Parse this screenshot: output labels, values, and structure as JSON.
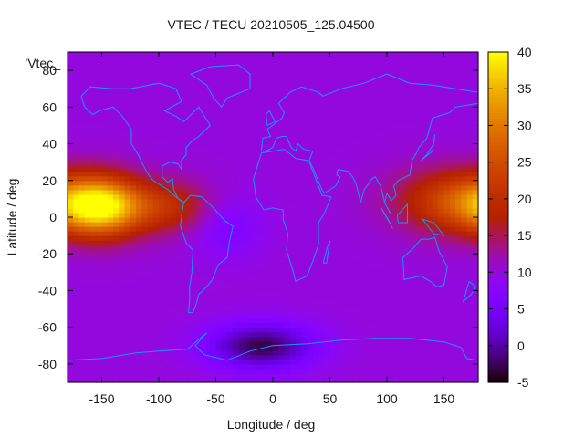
{
  "chart_data": {
    "type": "heatmap",
    "title": "VTEC / TECU 20210505_125.04500",
    "key_label": "'Vtec_",
    "xlabel": "Longitude / deg",
    "ylabel": "Latitude / deg",
    "xlim": [
      -180,
      180
    ],
    "ylim": [
      -90,
      90
    ],
    "x_ticks": [
      -150,
      -100,
      -50,
      0,
      50,
      100,
      150
    ],
    "y_ticks": [
      -80,
      -60,
      -40,
      -20,
      0,
      20,
      40,
      60,
      80
    ],
    "x_tick_labels": [
      "-150",
      "-100",
      "-50",
      "0",
      "50",
      "100",
      "150"
    ],
    "y_tick_labels": [
      "-80",
      "-60",
      "-40",
      "-20",
      "0",
      "20",
      "40",
      "60",
      "80"
    ],
    "colorbar": {
      "min": -5,
      "max": 40,
      "ticks": [
        -5,
        0,
        5,
        10,
        15,
        20,
        25,
        30,
        35,
        40
      ],
      "tick_labels": [
        "-5",
        "0",
        "5",
        "10",
        "15",
        "20",
        "25",
        "30",
        "35",
        "40"
      ]
    },
    "grid": false,
    "coastline_color": "#1e90ff",
    "features": [
      {
        "type": "background",
        "value": 10
      },
      {
        "type": "enhancement",
        "lon": -150,
        "lat": 6,
        "lon_width": 35,
        "lat_width": 16,
        "value": 25
      },
      {
        "type": "enhancement",
        "lon": -95,
        "lat": 6,
        "lon_width": 40,
        "lat_width": 14,
        "value": 10
      },
      {
        "type": "enhancement",
        "lon": 175,
        "lat": 8,
        "lon_width": 45,
        "lat_width": 16,
        "value": 12
      },
      {
        "type": "enhancement",
        "lon": 145,
        "lat": 10,
        "lon_width": 50,
        "lat_width": 18,
        "value": 6
      },
      {
        "type": "depletion",
        "lon": -10,
        "lat": -70,
        "lon_width": 45,
        "lat_width": 12,
        "value": -13
      },
      {
        "type": "depletion",
        "lon": -40,
        "lat": -5,
        "lon_width": 30,
        "lat_width": 16,
        "value": -4
      }
    ]
  }
}
